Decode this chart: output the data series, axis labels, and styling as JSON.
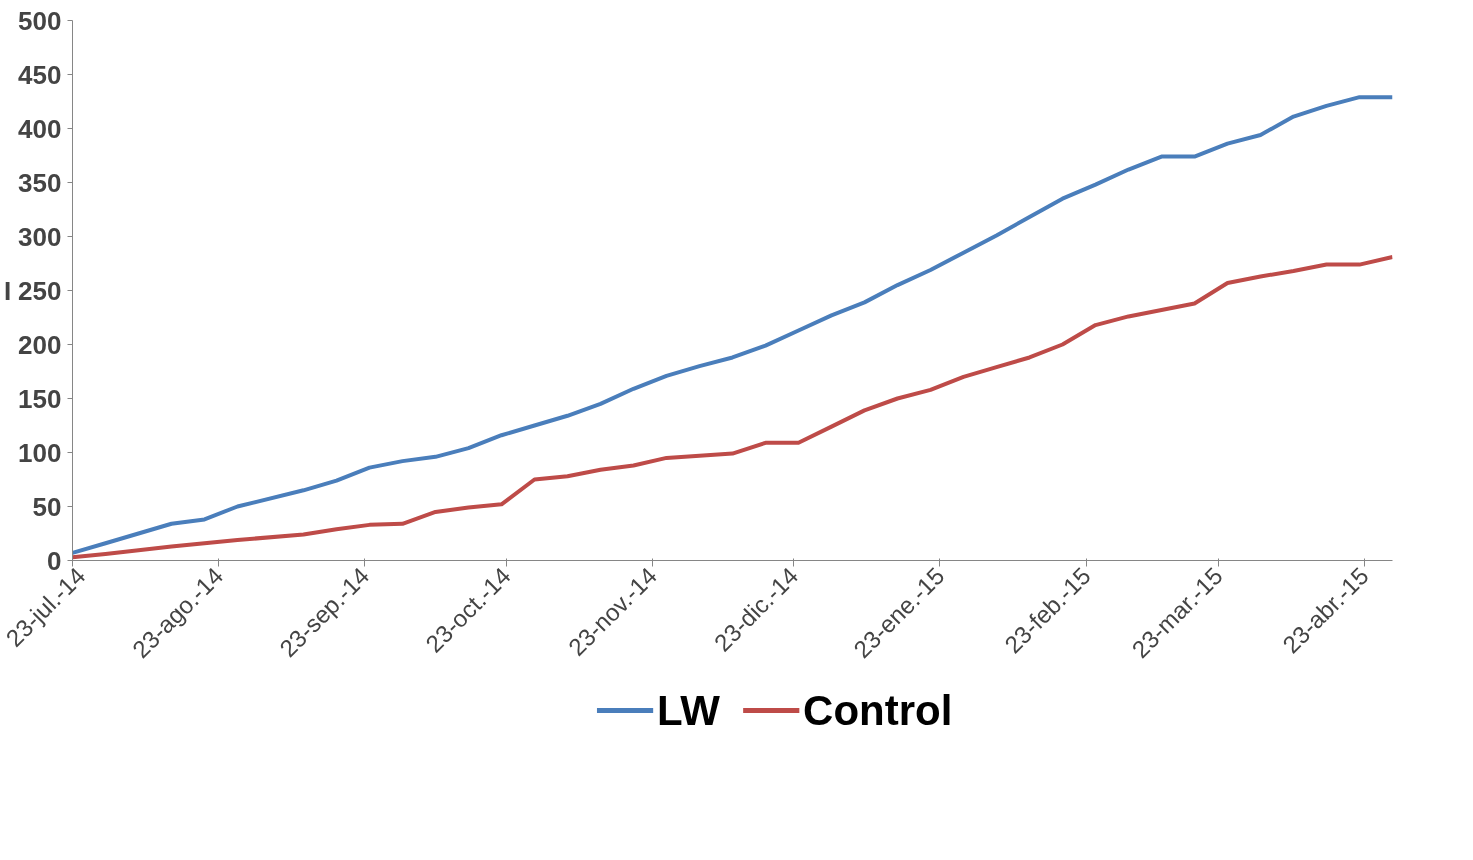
{
  "chart_data": {
    "type": "line",
    "ylabel": "I",
    "xlim": [
      "2014-07-23",
      "2015-04-29"
    ],
    "ylim": [
      0,
      500
    ],
    "xticks": [
      {
        "value": "2014-07-23",
        "label": "23-jul.-14"
      },
      {
        "value": "2014-08-23",
        "label": "23-ago.-14"
      },
      {
        "value": "2014-09-23",
        "label": "23-sep.-14"
      },
      {
        "value": "2014-10-23",
        "label": "23-oct.-14"
      },
      {
        "value": "2014-11-23",
        "label": "23-nov.-14"
      },
      {
        "value": "2014-12-23",
        "label": "23-dic.-14"
      },
      {
        "value": "2015-01-23",
        "label": "23-ene.-15"
      },
      {
        "value": "2015-02-23",
        "label": "23-feb.-15"
      },
      {
        "value": "2015-03-23",
        "label": "23-mar.-15"
      },
      {
        "value": "2015-04-23",
        "label": "23-abr.-15"
      }
    ],
    "yticks": [
      0,
      50,
      100,
      150,
      200,
      250,
      300,
      350,
      400,
      450,
      500
    ],
    "grid": false,
    "legend": "bottom",
    "marker": "none",
    "line_style": "solid",
    "series": [
      {
        "name": "LW",
        "color": "#4a7ebb",
        "x": [
          "2014-07-23",
          "2014-07-30",
          "2014-08-06",
          "2014-08-13",
          "2014-08-20",
          "2014-08-27",
          "2014-09-10",
          "2014-09-17",
          "2014-09-24",
          "2014-10-01",
          "2014-10-08",
          "2014-10-15",
          "2014-10-22",
          "2014-10-29",
          "2014-11-05",
          "2014-11-12",
          "2014-11-19",
          "2014-11-26",
          "2014-12-03",
          "2014-12-10",
          "2014-12-17",
          "2014-12-24",
          "2014-12-31",
          "2015-01-07",
          "2015-01-14",
          "2015-01-21",
          "2015-01-28",
          "2015-02-04",
          "2015-02-11",
          "2015-02-18",
          "2015-02-25",
          "2015-03-04",
          "2015-03-11",
          "2015-03-18",
          "2015-03-25",
          "2015-04-01",
          "2015-04-08",
          "2015-04-15",
          "2015-04-22",
          "2015-04-29"
        ],
        "values": [
          7,
          16,
          25,
          34,
          38,
          50,
          65,
          74,
          86,
          92,
          96,
          104,
          116,
          125,
          134,
          145,
          159,
          171,
          180,
          188,
          199,
          213,
          227,
          239,
          255,
          269,
          285,
          301,
          318,
          335,
          348,
          362,
          374,
          374,
          386,
          394,
          411,
          421,
          429,
          429
        ]
      },
      {
        "name": "Control",
        "color": "#be4b48",
        "x": [
          "2014-07-23",
          "2014-07-30",
          "2014-08-13",
          "2014-08-27",
          "2014-09-10",
          "2014-09-17",
          "2014-09-24",
          "2014-10-01",
          "2014-10-08",
          "2014-10-15",
          "2014-10-22",
          "2014-10-29",
          "2014-11-05",
          "2014-11-12",
          "2014-11-19",
          "2014-11-26",
          "2014-12-03",
          "2014-12-10",
          "2014-12-17",
          "2014-12-24",
          "2014-12-31",
          "2015-01-07",
          "2015-01-14",
          "2015-01-21",
          "2015-01-28",
          "2015-02-04",
          "2015-02-11",
          "2015-02-18",
          "2015-02-25",
          "2015-03-04",
          "2015-03-11",
          "2015-03-18",
          "2015-03-25",
          "2015-04-01",
          "2015-04-08",
          "2015-04-15",
          "2015-04-22",
          "2015-04-29"
        ],
        "values": [
          3,
          6,
          13,
          19,
          24,
          29,
          33,
          34,
          45,
          49,
          52,
          75,
          78,
          84,
          88,
          95,
          97,
          99,
          109,
          109,
          124,
          139,
          150,
          158,
          170,
          179,
          188,
          200,
          218,
          226,
          232,
          238,
          257,
          263,
          268,
          274,
          274,
          281
        ]
      }
    ]
  }
}
